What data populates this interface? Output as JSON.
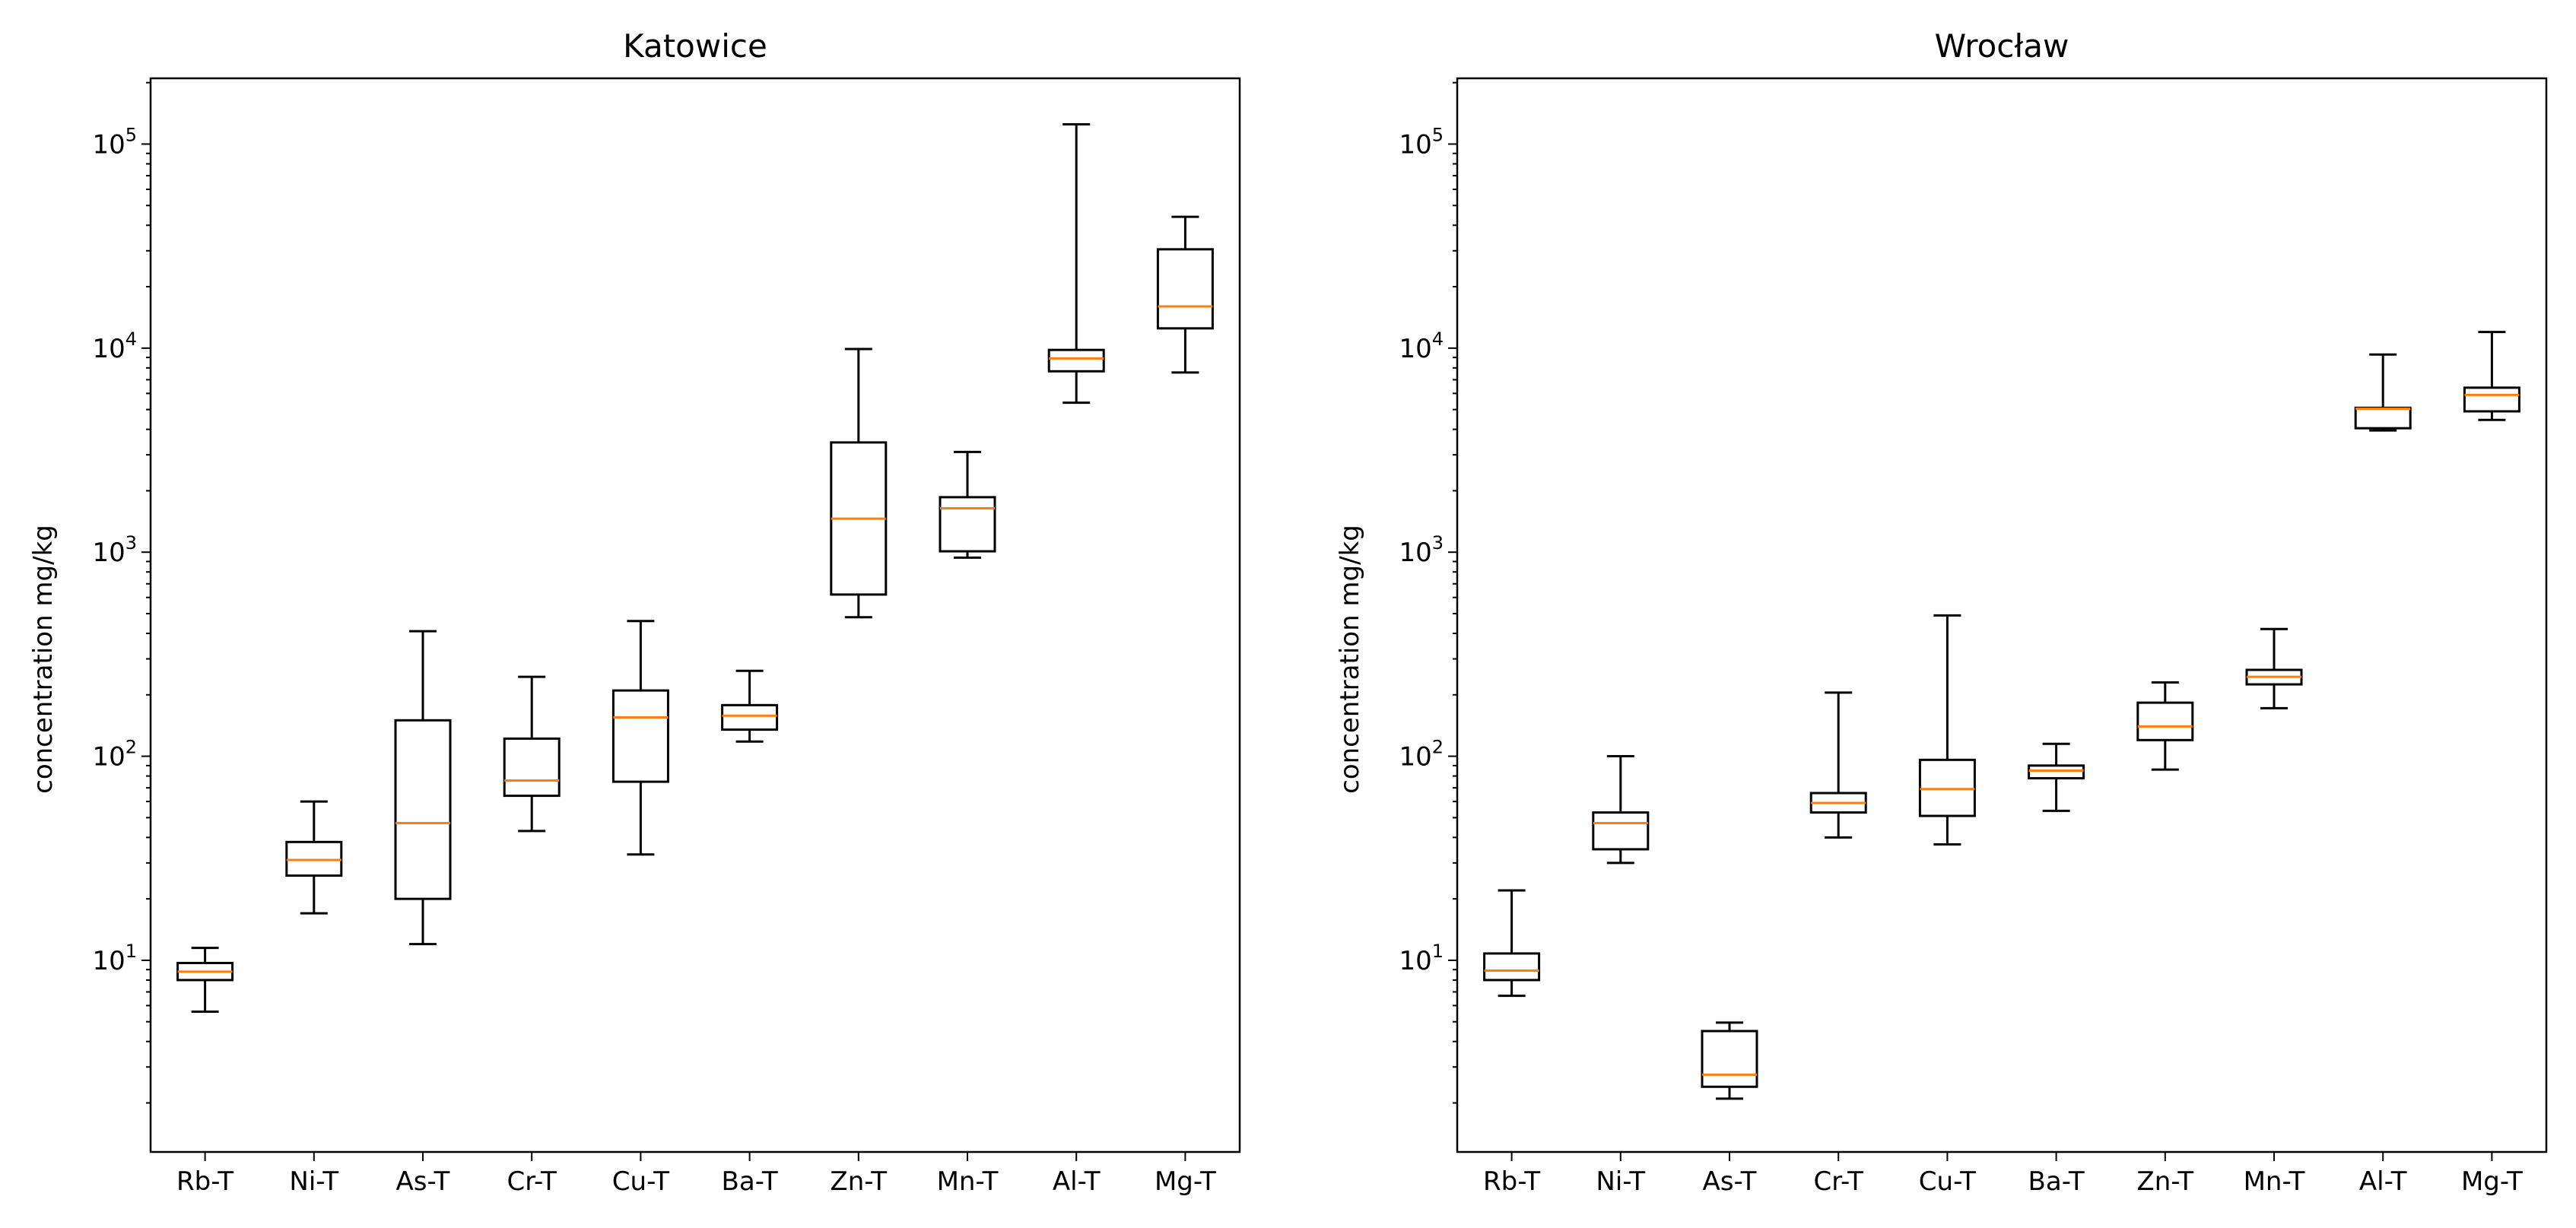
{
  "chart_data": [
    {
      "type": "box",
      "title": "Katowice",
      "xlabel": "",
      "ylabel": "concentration mg/kg",
      "yscale": "log",
      "ylim": [
        1.15,
        210000
      ],
      "yticks": [
        {
          "value": 10,
          "label": "10",
          "exp": "1"
        },
        {
          "value": 100,
          "label": "10",
          "exp": "2"
        },
        {
          "value": 1000,
          "label": "10",
          "exp": "3"
        },
        {
          "value": 10000,
          "label": "10",
          "exp": "4"
        },
        {
          "value": 100000,
          "label": "10",
          "exp": "5"
        }
      ],
      "categories": [
        "Rb-T",
        "Ni-T",
        "As-T",
        "Cr-T",
        "Cu-T",
        "Ba-T",
        "Zn-T",
        "Mn-T",
        "Al-T",
        "Mg-T"
      ],
      "boxes": [
        {
          "label": "Rb-T",
          "whislo": 5.6,
          "q1": 8.0,
          "med": 8.8,
          "q3": 9.7,
          "whishi": 11.5
        },
        {
          "label": "Ni-T",
          "whislo": 17,
          "q1": 26,
          "med": 31,
          "q3": 38,
          "whishi": 60
        },
        {
          "label": "As-T",
          "whislo": 12,
          "q1": 20,
          "med": 47,
          "q3": 150,
          "whishi": 410
        },
        {
          "label": "Cr-T",
          "whislo": 43,
          "q1": 64,
          "med": 76,
          "q3": 122,
          "whishi": 245
        },
        {
          "label": "Cu-T",
          "whislo": 33,
          "q1": 75,
          "med": 155,
          "q3": 210,
          "whishi": 460
        },
        {
          "label": "Ba-T",
          "whislo": 118,
          "q1": 135,
          "med": 158,
          "q3": 178,
          "whishi": 262
        },
        {
          "label": "Zn-T",
          "whislo": 480,
          "q1": 620,
          "med": 1460,
          "q3": 3450,
          "whishi": 9900
        },
        {
          "label": "Mn-T",
          "whislo": 940,
          "q1": 1010,
          "med": 1640,
          "q3": 1860,
          "whishi": 3100
        },
        {
          "label": "Al-T",
          "whislo": 5400,
          "q1": 7700,
          "med": 8900,
          "q3": 9800,
          "whishi": 125000
        },
        {
          "label": "Mg-T",
          "whislo": 7600,
          "q1": 12500,
          "med": 16000,
          "q3": 30500,
          "whishi": 44000
        }
      ]
    },
    {
      "type": "box",
      "title": "Wrocław",
      "xlabel": "",
      "ylabel": "concentration mg/kg",
      "yscale": "log",
      "ylim": [
        1.15,
        210000
      ],
      "yticks": [
        {
          "value": 10,
          "label": "10",
          "exp": "1"
        },
        {
          "value": 100,
          "label": "10",
          "exp": "2"
        },
        {
          "value": 1000,
          "label": "10",
          "exp": "3"
        },
        {
          "value": 10000,
          "label": "10",
          "exp": "4"
        },
        {
          "value": 100000,
          "label": "10",
          "exp": "5"
        }
      ],
      "categories": [
        "Rb-T",
        "Ni-T",
        "As-T",
        "Cr-T",
        "Cu-T",
        "Ba-T",
        "Zn-T",
        "Mn-T",
        "Al-T",
        "Mg-T"
      ],
      "boxes": [
        {
          "label": "Rb-T",
          "whislo": 6.7,
          "q1": 8.0,
          "med": 8.9,
          "q3": 10.8,
          "whishi": 22
        },
        {
          "label": "Ni-T",
          "whislo": 30,
          "q1": 35,
          "med": 47,
          "q3": 53,
          "whishi": 100
        },
        {
          "label": "As-T",
          "whislo": 2.1,
          "q1": 2.4,
          "med": 2.75,
          "q3": 4.5,
          "whishi": 4.95
        },
        {
          "label": "Cr-T",
          "whislo": 40,
          "q1": 53,
          "med": 59,
          "q3": 66,
          "whishi": 205
        },
        {
          "label": "Cu-T",
          "whislo": 37,
          "q1": 51,
          "med": 69,
          "q3": 96,
          "whishi": 490
        },
        {
          "label": "Ba-T",
          "whislo": 54,
          "q1": 78,
          "med": 85,
          "q3": 90,
          "whishi": 115
        },
        {
          "label": "Zn-T",
          "whislo": 86,
          "q1": 120,
          "med": 140,
          "q3": 183,
          "whishi": 230
        },
        {
          "label": "Mn-T",
          "whislo": 172,
          "q1": 225,
          "med": 245,
          "q3": 265,
          "whishi": 420
        },
        {
          "label": "Al-T",
          "whislo": 3950,
          "q1": 4050,
          "med": 5050,
          "q3": 5100,
          "whishi": 9300
        },
        {
          "label": "Mg-T",
          "whislo": 4450,
          "q1": 4900,
          "med": 5900,
          "q3": 6400,
          "whishi": 12000
        }
      ]
    }
  ],
  "colors": {
    "median": "#ff7f0e",
    "box": "#000000",
    "axes": "#000000",
    "background": "#ffffff"
  }
}
